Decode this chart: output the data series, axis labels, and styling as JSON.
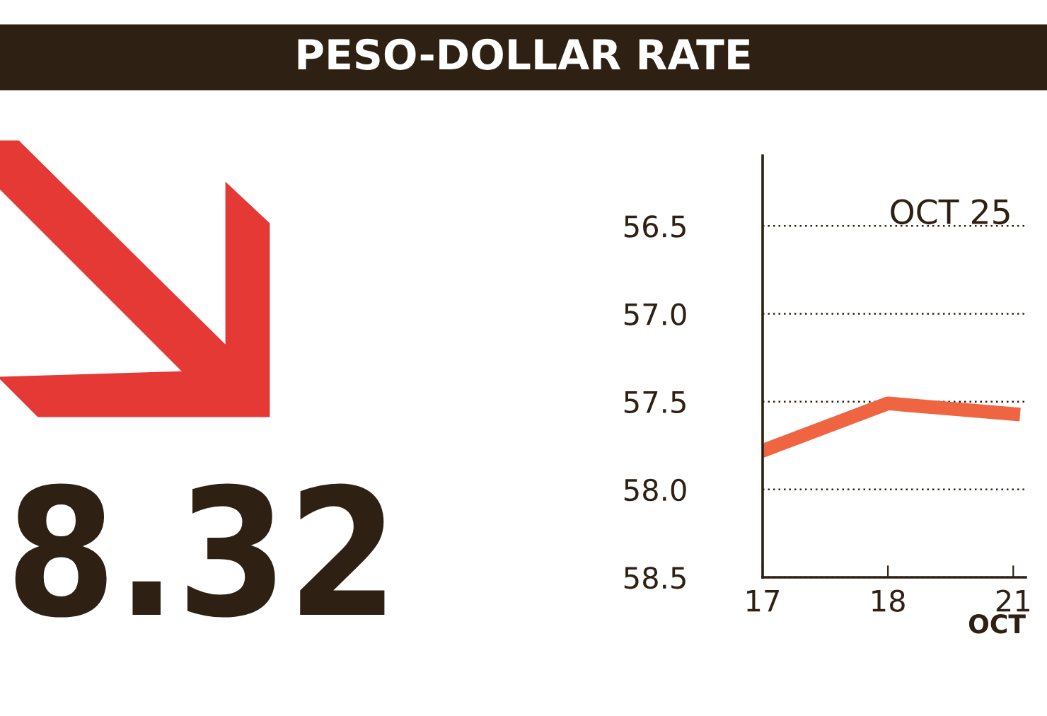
{
  "chart_data": {
    "type": "line",
    "title": "PESO-DOLLAR RATE",
    "xlabel": "OCT",
    "categories": [
      "17",
      "18",
      "21"
    ],
    "series": [
      {
        "color": "#ef6541",
        "values": [
          57.78,
          57.51,
          57.57
        ]
      }
    ],
    "ylim": [
      58.5,
      56.1
    ],
    "yticks": [
      {
        "value": 56.5,
        "label": "56.5"
      },
      {
        "value": 57.0,
        "label": "57.0"
      },
      {
        "value": 57.5,
        "label": "57.5"
      },
      {
        "value": 58.0,
        "label": "58.0"
      },
      {
        "value": 58.5,
        "label": "58.5"
      }
    ],
    "grid": "y",
    "line_style": "solid",
    "marker": "none",
    "annotations": [
      "8.32",
      "OCT 25"
    ]
  }
}
